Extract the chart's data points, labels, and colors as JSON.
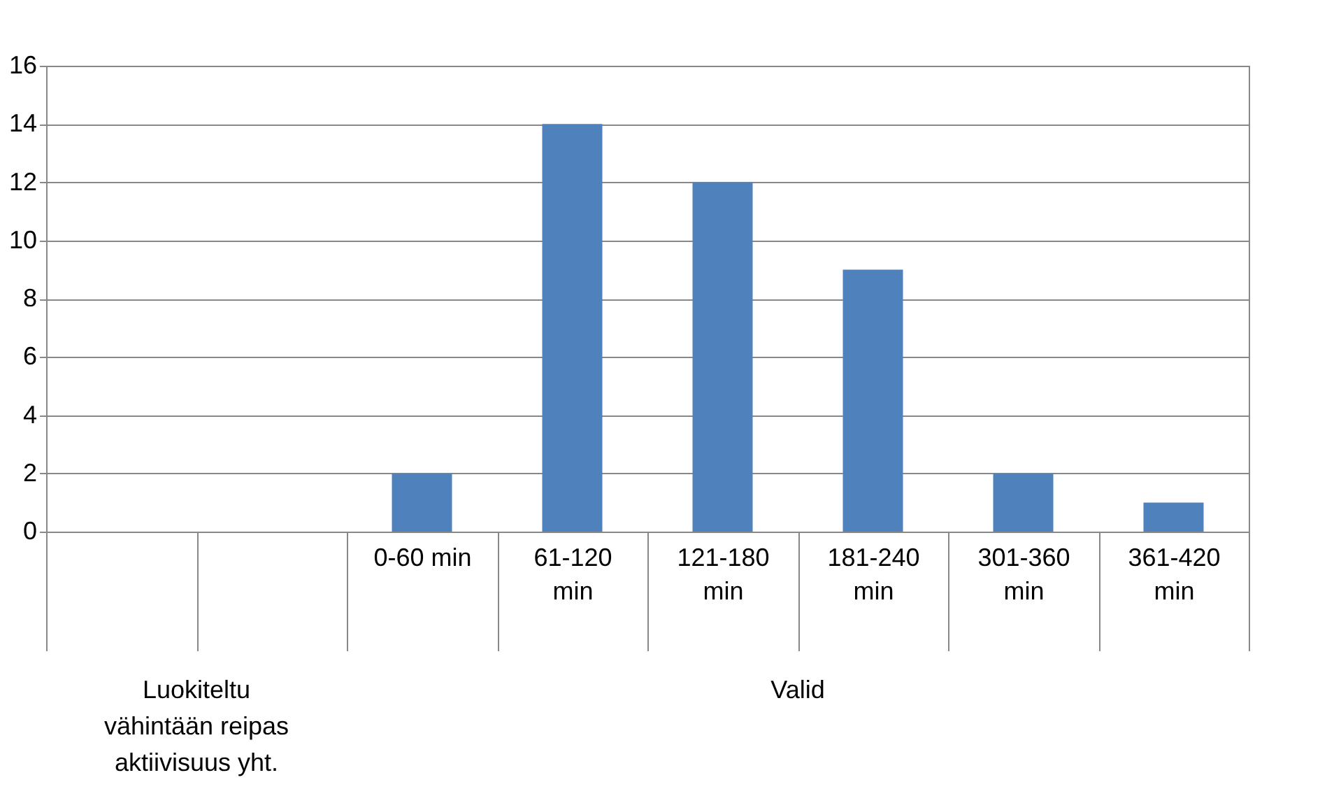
{
  "chart_data": {
    "type": "bar",
    "categories": [
      null,
      null,
      "0-60 min",
      "61-120 min",
      "121-180 min",
      "181-240 min",
      "301-360 min",
      "361-420 min"
    ],
    "values": [
      null,
      null,
      2,
      14,
      12,
      9,
      2,
      1
    ],
    "color": "#4f81bd",
    "ylim": [
      0,
      16
    ],
    "yticks": [
      0,
      2,
      4,
      6,
      8,
      10,
      12,
      14,
      16
    ],
    "grid": "y",
    "annotations": [
      "Luokiteltu vähintään reipas aktiivisuus yht.",
      "Valid"
    ]
  }
}
